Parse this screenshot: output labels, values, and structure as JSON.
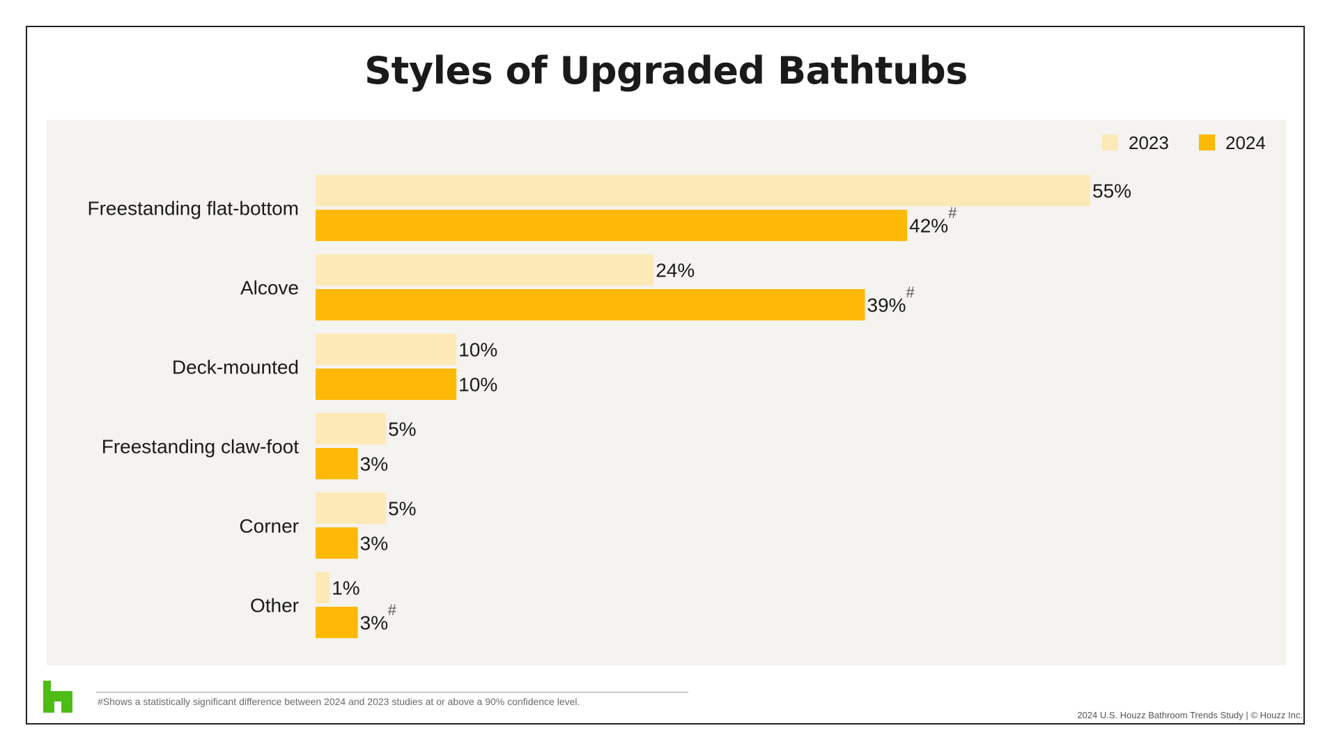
{
  "chart_data": {
    "type": "bar",
    "orientation": "horizontal",
    "title": "Styles of Upgraded Bathtubs",
    "categories": [
      "Freestanding flat-bottom",
      "Alcove",
      "Deck-mounted",
      "Freestanding claw-foot",
      "Corner",
      "Other"
    ],
    "series": [
      {
        "name": "2023",
        "values": [
          55,
          24,
          10,
          5,
          5,
          1
        ],
        "labels": [
          "55%",
          "24%",
          "10%",
          "5%",
          "5%",
          "1%"
        ],
        "color": "#fde9b8"
      },
      {
        "name": "2024",
        "values": [
          42,
          39,
          10,
          3,
          3,
          3
        ],
        "labels": [
          "42%",
          "39%",
          "10%",
          "3%",
          "3%",
          "3%"
        ],
        "significant": [
          true,
          true,
          false,
          false,
          false,
          true
        ],
        "color": "#fdb906"
      }
    ],
    "significance_marker": "#",
    "xlim": [
      0,
      55
    ],
    "legend_position": "top-right",
    "grid": false
  },
  "footnote": "#Shows a statistically significant difference between 2024 and 2023 studies at or above a 90% confidence level.",
  "source": "2024 U.S. Houzz Bathroom Trends Study  |  © Houzz Inc.",
  "logo": {
    "name": "houzz-logo",
    "color": "#4dbc15"
  }
}
